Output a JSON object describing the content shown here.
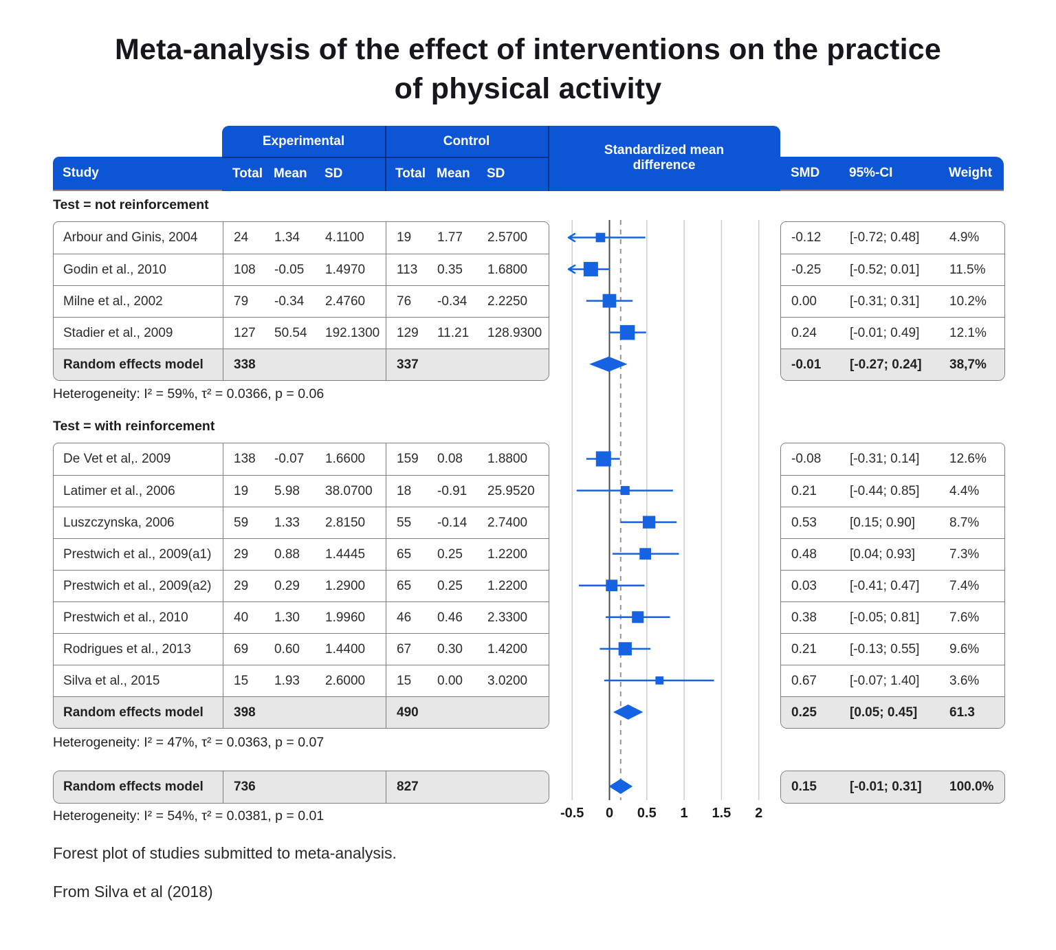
{
  "accent_colors": {
    "header_blue": "#0c55d4",
    "marker_blue": "#1562e3",
    "summary_gray": "#e7e7e7"
  },
  "title": {
    "line1": "Meta-analysis of the effect of interventions on the practice",
    "line2": "of physical activity"
  },
  "header": {
    "study": "Study",
    "experimental": "Experimental",
    "control": "Control",
    "smd_plot": "Standardized mean difference",
    "total": "Total",
    "mean": "Mean",
    "sd": "SD",
    "smd": "SMD",
    "ci": "95%-CI",
    "weight": "Weight"
  },
  "groups": [
    {
      "label": "Test = not reinforcement",
      "rows": [
        {
          "study": "Arbour and Ginis, 2004",
          "et": "24",
          "em": "1.34",
          "esd": "4.1100",
          "ct": "19",
          "cm": "1.77",
          "csd": "2.5700",
          "smd": "-0.12",
          "ci": "[-0.72; 0.48]",
          "w": "4.9%"
        },
        {
          "study": "Godin et al., 2010",
          "et": "108",
          "em": "-0.05",
          "esd": "1.4970",
          "ct": "113",
          "cm": "0.35",
          "csd": "1.6800",
          "smd": "-0.25",
          "ci": "[-0.52; 0.01]",
          "w": "11.5%"
        },
        {
          "study": "Milne et al., 2002",
          "et": "79",
          "em": "-0.34",
          "esd": "2.4760",
          "ct": "76",
          "cm": "-0.34",
          "csd": "2.2250",
          "smd": "0.00",
          "ci": "[-0.31; 0.31]",
          "w": "10.2%"
        },
        {
          "study": "Stadier et al., 2009",
          "et": "127",
          "em": "50.54",
          "esd": "192.1300",
          "ct": "129",
          "cm": "11.21",
          "csd": "128.9300",
          "smd": "0.24",
          "ci": "[-0.01; 0.49]",
          "w": "12.1%"
        }
      ],
      "summary": {
        "label": "Random effects model",
        "et": "338",
        "ct": "337",
        "smd": "-0.01",
        "ci": "[-0.27; 0.24]",
        "w": "38,7%"
      },
      "heterogeneity": "Heterogeneity: I² = 59%, τ² = 0.0366, p = 0.06"
    },
    {
      "label": "Test = with reinforcement",
      "rows": [
        {
          "study": "De Vet et al,. 2009",
          "et": "138",
          "em": "-0.07",
          "esd": "1.6600",
          "ct": "159",
          "cm": "0.08",
          "csd": "1.8800",
          "smd": "-0.08",
          "ci": "[-0.31; 0.14]",
          "w": "12.6%"
        },
        {
          "study": "Latimer et al., 2006",
          "et": "19",
          "em": "5.98",
          "esd": "38.0700",
          "ct": "18",
          "cm": "-0.91",
          "csd": "25.9520",
          "smd": "0.21",
          "ci": "[-0.44; 0.85]",
          "w": "4.4%"
        },
        {
          "study": "Luszczynska, 2006",
          "et": "59",
          "em": "1.33",
          "esd": "2.8150",
          "ct": "55",
          "cm": "-0.14",
          "csd": "2.7400",
          "smd": "0.53",
          "ci": "[0.15; 0.90]",
          "w": "8.7%"
        },
        {
          "study": "Prestwich et al., 2009(a1)",
          "et": "29",
          "em": "0.88",
          "esd": "1.4445",
          "ct": "65",
          "cm": "0.25",
          "csd": "1.2200",
          "smd": "0.48",
          "ci": "[0.04; 0.93]",
          "w": "7.3%"
        },
        {
          "study": "Prestwich et al., 2009(a2)",
          "et": "29",
          "em": "0.29",
          "esd": "1.2900",
          "ct": "65",
          "cm": "0.25",
          "csd": "1.2200",
          "smd": "0.03",
          "ci": "[-0.41; 0.47]",
          "w": "7.4%"
        },
        {
          "study": "Prestwich et al., 2010",
          "et": "40",
          "em": "1.30",
          "esd": "1.9960",
          "ct": "46",
          "cm": "0.46",
          "csd": "2.3300",
          "smd": "0.38",
          "ci": "[-0.05; 0.81]",
          "w": "7.6%"
        },
        {
          "study": "Rodrigues et al., 2013",
          "et": "69",
          "em": "0.60",
          "esd": "1.4400",
          "ct": "67",
          "cm": "0.30",
          "csd": "1.4200",
          "smd": "0.21",
          "ci": "[-0.13; 0.55]",
          "w": "9.6%"
        },
        {
          "study": "Silva et al., 2015",
          "et": "15",
          "em": "1.93",
          "esd": "2.6000",
          "ct": "15",
          "cm": "0.00",
          "csd": "3.0200",
          "smd": "0.67",
          "ci": "[-0.07; 1.40]",
          "w": "3.6%"
        }
      ],
      "summary": {
        "label": "Random effects model",
        "et": "398",
        "ct": "490",
        "smd": "0.25",
        "ci": "[0.05; 0.45]",
        "w": "61.3"
      },
      "heterogeneity": "Heterogeneity: I² = 47%, τ² = 0.0363, p = 0.07"
    }
  ],
  "overall": {
    "label": "Random effects model",
    "et": "736",
    "ct": "827",
    "smd": "0.15",
    "ci": "[-0.01; 0.31]",
    "w": "100.0%",
    "heterogeneity": "Heterogeneity: I² = 54%, τ² = 0.0381, p = 0.01"
  },
  "footer": {
    "caption": "Forest plot of studies submitted to meta-analysis.",
    "source": "From Silva et al (2018)"
  },
  "chart_data": {
    "type": "forest",
    "title": "Standardized mean difference",
    "ticks": [
      {
        "v": -0.5,
        "label": "-0.5"
      },
      {
        "v": 0,
        "label": "0"
      },
      {
        "v": 0.5,
        "label": "0.5"
      },
      {
        "v": 1,
        "label": "1"
      },
      {
        "v": 1.5,
        "label": "1.5"
      },
      {
        "v": 2,
        "label": "2"
      }
    ],
    "xlim": [
      -0.5,
      2
    ],
    "zero_line": 0,
    "ref_line": 0.15,
    "grid": true,
    "groups": [
      {
        "name": "Test = not reinforcement",
        "studies": [
          {
            "smd": -0.12,
            "lo": -0.72,
            "hi": 0.48,
            "weight": 4.9
          },
          {
            "smd": -0.25,
            "lo": -0.52,
            "hi": 0.01,
            "weight": 11.5
          },
          {
            "smd": 0.0,
            "lo": -0.31,
            "hi": 0.31,
            "weight": 10.2
          },
          {
            "smd": 0.24,
            "lo": -0.01,
            "hi": 0.49,
            "weight": 12.1
          }
        ],
        "summary": {
          "smd": -0.01,
          "lo": -0.27,
          "hi": 0.24
        }
      },
      {
        "name": "Test = with reinforcement",
        "studies": [
          {
            "smd": -0.08,
            "lo": -0.31,
            "hi": 0.14,
            "weight": 12.6
          },
          {
            "smd": 0.21,
            "lo": -0.44,
            "hi": 0.85,
            "weight": 4.4
          },
          {
            "smd": 0.53,
            "lo": 0.15,
            "hi": 0.9,
            "weight": 8.7
          },
          {
            "smd": 0.48,
            "lo": 0.04,
            "hi": 0.93,
            "weight": 7.3
          },
          {
            "smd": 0.03,
            "lo": -0.41,
            "hi": 0.47,
            "weight": 7.4
          },
          {
            "smd": 0.38,
            "lo": -0.05,
            "hi": 0.81,
            "weight": 7.6
          },
          {
            "smd": 0.21,
            "lo": -0.13,
            "hi": 0.55,
            "weight": 9.6
          },
          {
            "smd": 0.67,
            "lo": -0.07,
            "hi": 1.4,
            "weight": 3.6
          }
        ],
        "summary": {
          "smd": 0.25,
          "lo": 0.05,
          "hi": 0.45
        }
      }
    ],
    "overall": {
      "smd": 0.15,
      "lo": -0.01,
      "hi": 0.31
    }
  }
}
